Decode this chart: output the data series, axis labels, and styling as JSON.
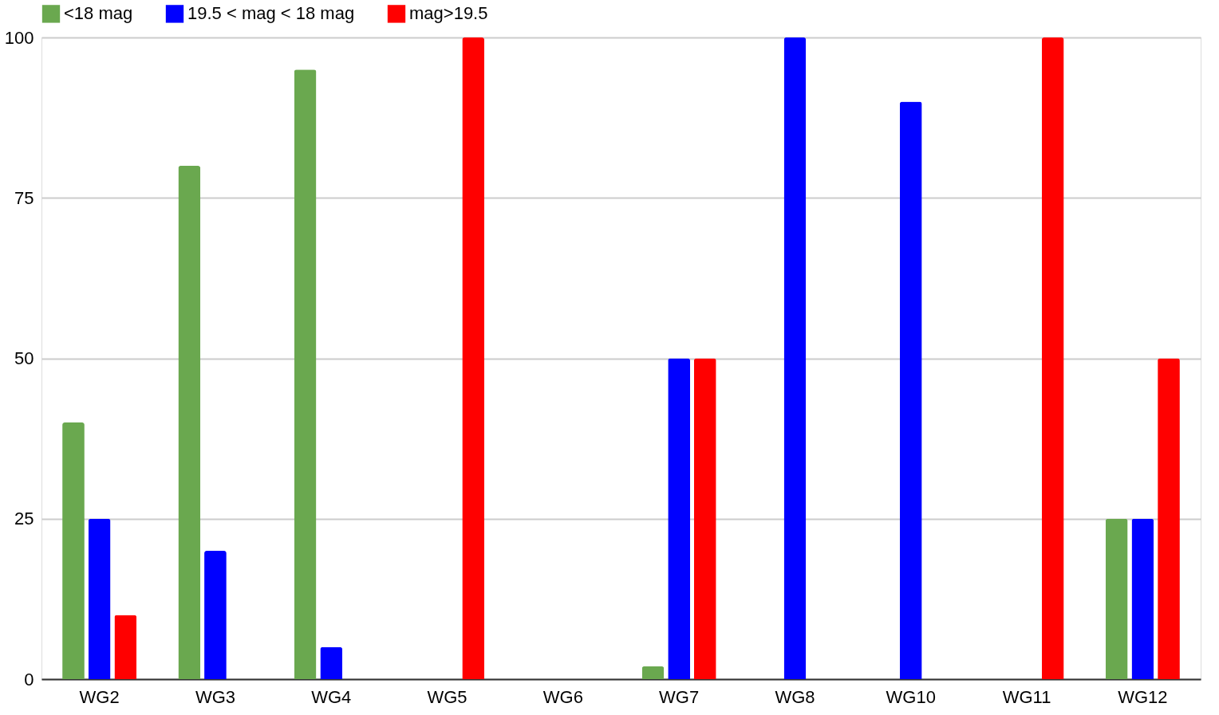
{
  "chart_data": {
    "type": "bar",
    "categories": [
      "WG2",
      "WG3",
      "WG4",
      "WG5",
      "WG6",
      "WG7",
      "WG8",
      "WG10",
      "WG11",
      "WG12"
    ],
    "series": [
      {
        "name": "<18 mag",
        "color": "#6aa84f",
        "values": [
          40,
          80,
          95,
          0,
          0,
          2,
          0,
          0,
          0,
          25
        ]
      },
      {
        "name": "19.5 < mag < 18 mag",
        "color": "#0000ff",
        "values": [
          25,
          20,
          5,
          0,
          0,
          50,
          100,
          90,
          0,
          25
        ]
      },
      {
        "name": "mag>19.5",
        "color": "#ff0000",
        "values": [
          10,
          0,
          0,
          100,
          0,
          50,
          0,
          0,
          100,
          50
        ]
      }
    ],
    "ylim": [
      0,
      100
    ],
    "yticks": [
      0,
      25,
      50,
      75,
      100
    ],
    "grid": "y",
    "legend": "top"
  }
}
